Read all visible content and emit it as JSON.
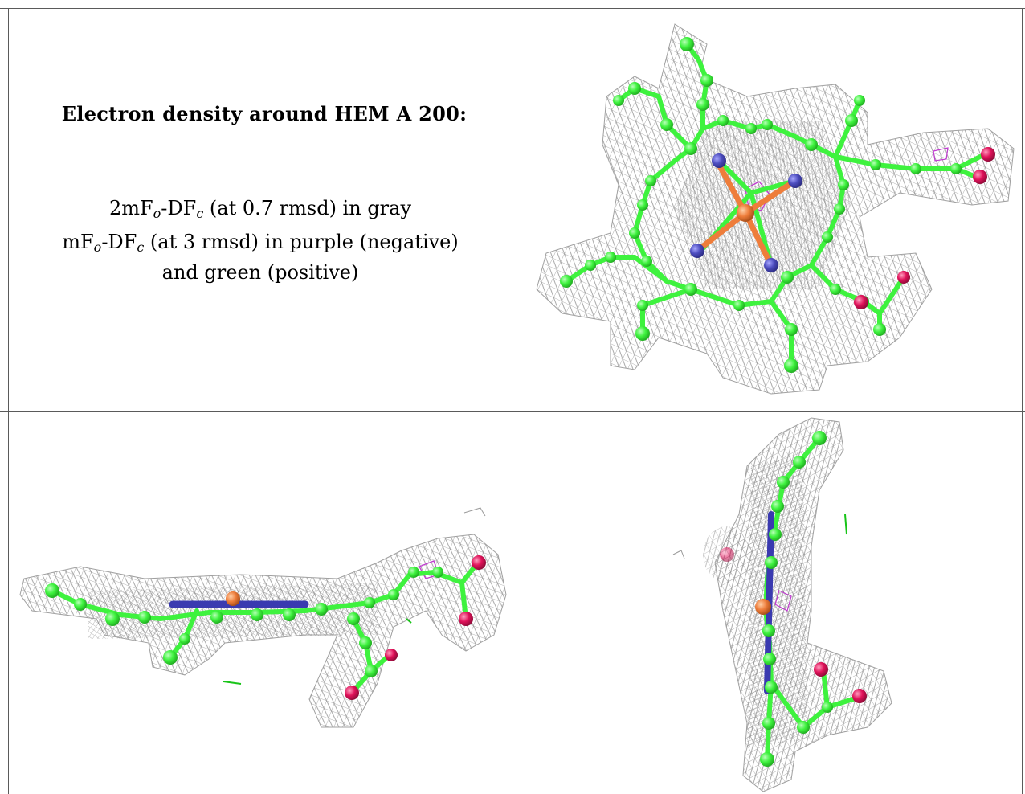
{
  "caption": {
    "title": "Electron density around HEM A 200:",
    "line1": {
      "pre": "2mF",
      "sub1": "o",
      "mid": "-DF",
      "sub2": "c",
      "post": " (at 0.7 rmsd) in gray"
    },
    "line2": {
      "pre": "mF",
      "sub1": "o",
      "mid": "-DF",
      "sub2": "c",
      "post": " (at 3 rmsd) in purple (negative)"
    },
    "line3": "and green (positive)"
  },
  "colors": {
    "carbon": "#3ef23e",
    "nitrogen": "#4d4dbf",
    "iron": "#ee7d3b",
    "oxygen": "#e0125a",
    "mesh_gray": "#9a9a9a",
    "mesh_negative": "#c03ad0",
    "mesh_positive": "#18c418",
    "border": "#5a5a5a"
  }
}
